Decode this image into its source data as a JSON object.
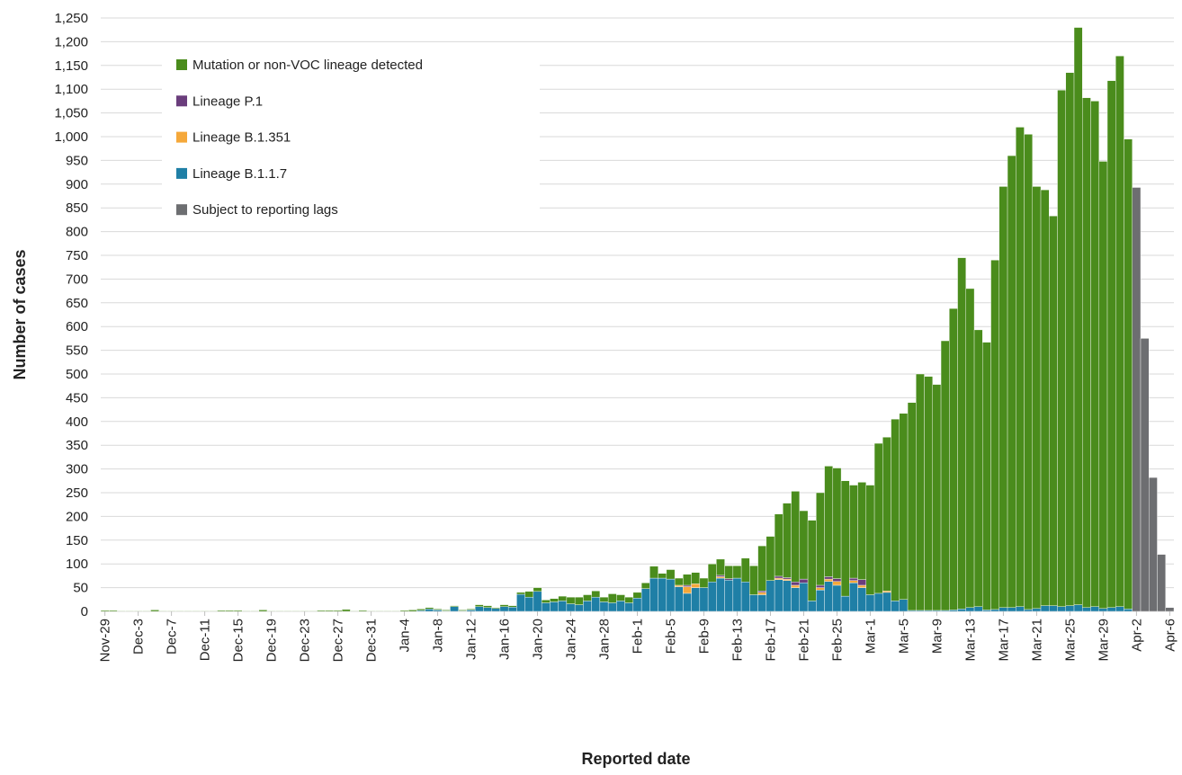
{
  "chart_data": {
    "type": "stacked-bar",
    "x_label": "Reported date",
    "y_label": "Number of cases",
    "categories": [
      "Nov-29",
      null,
      null,
      null,
      "Dec-3",
      null,
      null,
      null,
      "Dec-7",
      null,
      null,
      null,
      "Dec-11",
      null,
      null,
      null,
      "Dec-15",
      null,
      null,
      null,
      "Dec-19",
      null,
      null,
      null,
      "Dec-23",
      null,
      null,
      null,
      "Dec-27",
      null,
      null,
      null,
      "Dec-31",
      null,
      null,
      null,
      "Jan-4",
      null,
      null,
      null,
      "Jan-8",
      null,
      null,
      null,
      "Jan-12",
      null,
      null,
      null,
      "Jan-16",
      null,
      null,
      null,
      "Jan-20",
      null,
      null,
      null,
      "Jan-24",
      null,
      null,
      null,
      "Jan-28",
      null,
      null,
      null,
      "Feb-1",
      null,
      null,
      null,
      "Feb-5",
      null,
      null,
      null,
      "Feb-9",
      null,
      null,
      null,
      "Feb-13",
      null,
      null,
      null,
      "Feb-17",
      null,
      null,
      null,
      "Feb-21",
      null,
      null,
      null,
      "Feb-25",
      null,
      null,
      null,
      "Mar-1",
      null,
      null,
      null,
      "Mar-5",
      null,
      null,
      null,
      "Mar-9",
      null,
      null,
      null,
      "Mar-13",
      null,
      null,
      null,
      "Mar-17",
      null,
      null,
      null,
      "Mar-21",
      null,
      null,
      null,
      "Mar-25",
      null,
      null,
      null,
      "Mar-29",
      null,
      null,
      null,
      "Apr-2",
      null,
      null,
      null,
      "Apr-6"
    ],
    "series": [
      {
        "name": "Lineage B.1.1.7",
        "color": "#1f7fa6",
        "values": [
          0,
          0,
          0,
          0,
          0,
          0,
          0,
          0,
          0,
          0,
          0,
          0,
          0,
          0,
          0,
          0,
          0,
          0,
          0,
          0,
          0,
          0,
          0,
          0,
          0,
          0,
          0,
          0,
          0,
          0,
          0,
          0,
          0,
          0,
          0,
          0,
          0,
          0,
          2,
          5,
          3,
          1,
          10,
          1,
          3,
          10,
          8,
          6,
          10,
          9,
          36,
          30,
          42,
          18,
          20,
          22,
          16,
          14,
          22,
          30,
          20,
          18,
          22,
          18,
          28,
          48,
          70,
          70,
          68,
          52,
          38,
          50,
          50,
          62,
          70,
          66,
          70,
          62,
          35,
          35,
          65,
          67,
          65,
          50,
          60,
          22,
          45,
          63,
          55,
          32,
          60,
          50,
          35,
          38,
          40,
          22,
          25,
          2,
          2,
          2,
          2,
          2,
          3,
          5,
          8,
          10,
          3,
          4,
          8,
          8,
          10,
          4,
          6,
          12,
          12,
          10,
          12,
          14,
          8,
          10,
          6,
          8,
          10,
          5,
          null,
          null,
          null,
          null,
          null
        ]
      },
      {
        "name": "Lineage B.1.351",
        "color": "#f5a83a",
        "values": [
          0,
          0,
          0,
          0,
          0,
          0,
          0,
          0,
          0,
          0,
          0,
          0,
          0,
          0,
          0,
          0,
          0,
          0,
          0,
          0,
          0,
          0,
          0,
          0,
          0,
          0,
          0,
          0,
          0,
          0,
          0,
          0,
          0,
          0,
          0,
          0,
          0,
          0,
          0,
          0,
          0,
          0,
          0,
          0,
          0,
          0,
          0,
          0,
          0,
          0,
          0,
          0,
          0,
          0,
          0,
          0,
          0,
          0,
          0,
          0,
          0,
          0,
          0,
          0,
          0,
          0,
          0,
          0,
          0,
          3,
          14,
          8,
          0,
          0,
          3,
          0,
          0,
          0,
          0,
          5,
          0,
          3,
          3,
          5,
          0,
          0,
          5,
          5,
          8,
          0,
          5,
          5,
          0,
          0,
          3,
          0,
          0,
          0,
          0,
          0,
          0,
          0,
          0,
          0,
          0,
          0,
          0,
          0,
          0,
          0,
          0,
          0,
          0,
          0,
          0,
          0,
          0,
          0,
          0,
          0,
          0,
          0,
          0,
          0,
          null,
          null,
          null,
          null,
          null
        ]
      },
      {
        "name": "Lineage P.1",
        "color": "#6a3d7c",
        "values": [
          0,
          0,
          0,
          0,
          0,
          0,
          0,
          0,
          0,
          0,
          0,
          0,
          0,
          0,
          0,
          0,
          0,
          0,
          0,
          0,
          0,
          0,
          0,
          0,
          0,
          0,
          0,
          0,
          0,
          0,
          0,
          0,
          0,
          0,
          0,
          0,
          0,
          0,
          0,
          0,
          0,
          0,
          0,
          0,
          0,
          0,
          0,
          0,
          0,
          0,
          0,
          0,
          0,
          0,
          0,
          0,
          0,
          0,
          0,
          0,
          0,
          0,
          0,
          0,
          0,
          0,
          0,
          0,
          0,
          0,
          3,
          0,
          0,
          0,
          3,
          3,
          0,
          0,
          0,
          3,
          0,
          4,
          3,
          7,
          8,
          0,
          5,
          5,
          6,
          0,
          5,
          12,
          0,
          0,
          0,
          0,
          0,
          0,
          0,
          0,
          0,
          0,
          0,
          0,
          0,
          0,
          0,
          0,
          0,
          0,
          0,
          0,
          0,
          0,
          0,
          0,
          0,
          0,
          0,
          0,
          0,
          0,
          0,
          0,
          null,
          null,
          null,
          null,
          null
        ]
      },
      {
        "name": "Mutation or non-VOC lineage detected",
        "color": "#4a8c1c",
        "values": [
          2,
          2,
          1,
          1,
          1,
          1,
          3,
          1,
          1,
          1,
          1,
          1,
          1,
          1,
          2,
          2,
          2,
          1,
          1,
          3,
          1,
          1,
          1,
          1,
          1,
          1,
          2,
          2,
          2,
          4,
          1,
          2,
          1,
          1,
          1,
          1,
          2,
          3,
          3,
          3,
          2,
          2,
          2,
          2,
          2,
          4,
          4,
          2,
          4,
          3,
          4,
          12,
          8,
          6,
          7,
          10,
          14,
          16,
          13,
          13,
          10,
          19,
          13,
          12,
          12,
          12,
          25,
          10,
          20,
          15,
          23,
          24,
          20,
          38,
          34,
          27,
          26,
          50,
          61,
          95,
          93,
          131,
          157,
          191,
          144,
          170,
          195,
          233,
          233,
          243,
          196,
          205,
          231,
          316,
          324,
          383,
          392,
          438,
          498,
          493,
          476,
          568,
          635,
          740,
          672,
          583,
          564,
          736,
          887,
          952,
          1010,
          1001,
          889,
          876,
          821,
          1088,
          1123,
          1216,
          1074,
          1065,
          942,
          1110,
          1160,
          990,
          null,
          null,
          null,
          null,
          null
        ]
      },
      {
        "name": "Subject to reporting lags",
        "color": "#6d6e71",
        "values": [
          null,
          null,
          null,
          null,
          null,
          null,
          null,
          null,
          null,
          null,
          null,
          null,
          null,
          null,
          null,
          null,
          null,
          null,
          null,
          null,
          null,
          null,
          null,
          null,
          null,
          null,
          null,
          null,
          null,
          null,
          null,
          null,
          null,
          null,
          null,
          null,
          null,
          null,
          null,
          null,
          null,
          null,
          null,
          null,
          null,
          null,
          null,
          null,
          null,
          null,
          null,
          null,
          null,
          null,
          null,
          null,
          null,
          null,
          null,
          null,
          null,
          null,
          null,
          null,
          null,
          null,
          null,
          null,
          null,
          null,
          null,
          null,
          null,
          null,
          null,
          null,
          null,
          null,
          null,
          null,
          null,
          null,
          null,
          null,
          null,
          null,
          null,
          null,
          null,
          null,
          null,
          null,
          null,
          null,
          null,
          null,
          null,
          null,
          null,
          null,
          null,
          null,
          null,
          null,
          null,
          null,
          null,
          null,
          null,
          null,
          null,
          null,
          null,
          null,
          null,
          null,
          null,
          null,
          null,
          null,
          null,
          null,
          null,
          null,
          893,
          575,
          282,
          120,
          8
        ]
      }
    ],
    "ylim": [
      0,
      1250
    ],
    "yticks": [
      0,
      50,
      100,
      150,
      200,
      250,
      300,
      350,
      400,
      450,
      500,
      550,
      600,
      650,
      700,
      750,
      800,
      850,
      900,
      950,
      {
        "value": 1000,
        "label": "1,000"
      },
      {
        "value": 1050,
        "label": "1,050"
      },
      {
        "value": 1100,
        "label": "1,100"
      },
      {
        "value": 1150,
        "label": "1,150"
      },
      {
        "value": 1200,
        "label": "1,200"
      },
      {
        "value": 1250,
        "label": "1,250"
      }
    ],
    "grid": true,
    "legend": "upper left"
  }
}
